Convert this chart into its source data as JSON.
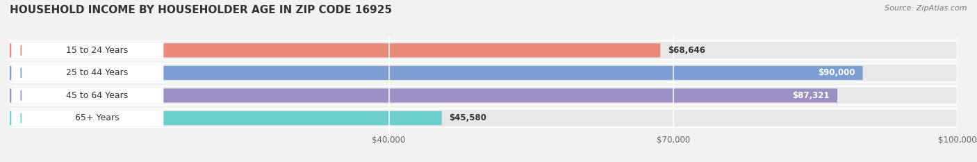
{
  "title": "HOUSEHOLD INCOME BY HOUSEHOLDER AGE IN ZIP CODE 16925",
  "source": "Source: ZipAtlas.com",
  "categories": [
    "15 to 24 Years",
    "25 to 44 Years",
    "45 to 64 Years",
    "65+ Years"
  ],
  "values": [
    68646,
    90000,
    87321,
    45580
  ],
  "labels": [
    "$68,646",
    "$90,000",
    "$87,321",
    "$45,580"
  ],
  "bar_colors": [
    "#e8897a",
    "#7b9fd4",
    "#9b8fc4",
    "#6ecfcf"
  ],
  "bar_height": 0.62,
  "xlim": [
    0,
    100000
  ],
  "xticks": [
    40000,
    70000,
    100000
  ],
  "xtick_labels": [
    "$40,000",
    "$70,000",
    "$100,000"
  ],
  "background_color": "#f2f2f2",
  "bar_background_color": "#e8e8e8",
  "label_bg_color": "#ffffff",
  "title_fontsize": 11,
  "source_fontsize": 8,
  "bar_label_fontsize": 8.5,
  "cat_label_fontsize": 9,
  "tick_fontsize": 8.5
}
